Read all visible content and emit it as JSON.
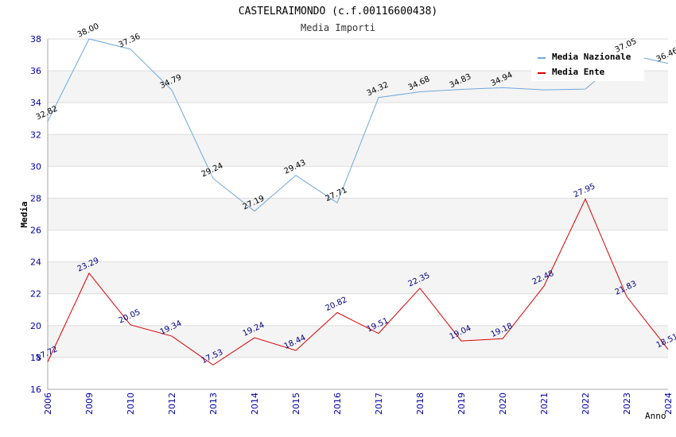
{
  "chart_data": {
    "type": "line",
    "title": "CASTELRAIMONDO (c.f.00116600438)",
    "subtitle": "Media Importi",
    "xlabel": "Anno",
    "ylabel": "Media",
    "ylim": [
      16,
      38
    ],
    "yticks": [
      "16",
      "18",
      "20",
      "22",
      "24",
      "26",
      "28",
      "30",
      "32",
      "34",
      "36",
      "38"
    ],
    "categories": [
      "2006",
      "2009",
      "2010",
      "2012",
      "2013",
      "2014",
      "2015",
      "2016",
      "2017",
      "2018",
      "2019",
      "2020",
      "2021",
      "2022",
      "2023",
      "2024"
    ],
    "series": [
      {
        "name": "Media Nazionale",
        "color": "#6fa8dc",
        "values": [
          32.82,
          38.0,
          37.36,
          34.79,
          29.24,
          27.19,
          29.43,
          27.71,
          34.32,
          34.68,
          34.83,
          34.94,
          34.8,
          34.85,
          37.05,
          36.46
        ],
        "labels": [
          "32.82",
          "38.00",
          "37.36",
          "34.79",
          "29.24",
          "27.19",
          "29.43",
          "27.71",
          "34.32",
          "34.68",
          "34.83",
          "34.94",
          "",
          "",
          "37.05",
          "36.46"
        ]
      },
      {
        "name": "Media Ente",
        "color": "#dd0000",
        "values": [
          17.72,
          23.29,
          20.05,
          19.34,
          17.53,
          19.24,
          18.44,
          20.82,
          19.51,
          22.35,
          19.04,
          19.18,
          22.48,
          27.95,
          21.83,
          18.51
        ],
        "labels": [
          "17.72",
          "23.29",
          "20.05",
          "19.34",
          "17.53",
          "19.24",
          "18.44",
          "20.82",
          "19.51",
          "22.35",
          "19.04",
          "19.18",
          "22.48",
          "27.95",
          "21.83",
          "18.51"
        ]
      }
    ],
    "grid": true,
    "legend": "top-right"
  }
}
